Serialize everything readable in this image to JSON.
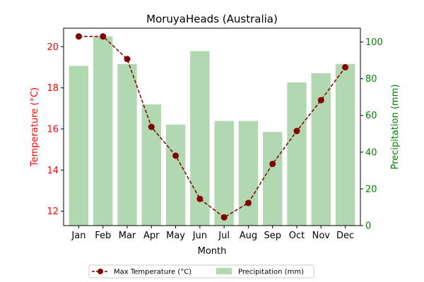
{
  "chart_data": {
    "type": "bar+line",
    "title": "MoruyaHeads (Australia)",
    "xlabel": "Month",
    "categories": [
      "Jan",
      "Feb",
      "Mar",
      "Apr",
      "May",
      "Jun",
      "Jul",
      "Aug",
      "Sep",
      "Oct",
      "Nov",
      "Dec"
    ],
    "y_left": {
      "label": "Temperature (°C)",
      "range": [
        11.3,
        20.9
      ],
      "ticks": [
        12,
        14,
        16,
        18,
        20
      ],
      "color": "#ff0000"
    },
    "y_right": {
      "label": "Precipitation (mm)",
      "range": [
        0,
        107.5
      ],
      "ticks": [
        0,
        20,
        40,
        60,
        80,
        100
      ],
      "color": "#008000"
    },
    "series": [
      {
        "name": "Max Temperature (°C)",
        "kind": "line",
        "axis": "left",
        "color": "#800000",
        "values": [
          20.5,
          20.5,
          19.4,
          16.1,
          14.7,
          12.6,
          11.7,
          12.4,
          14.3,
          15.9,
          17.4,
          19.0
        ]
      },
      {
        "name": "Precipitation (mm)",
        "kind": "bar",
        "axis": "right",
        "color": "#b2d8b2",
        "values": [
          87,
          103,
          88,
          66,
          55,
          95,
          57,
          57,
          51,
          78,
          83,
          88
        ]
      }
    ],
    "grid": false,
    "legend_position": "bottom-center"
  }
}
